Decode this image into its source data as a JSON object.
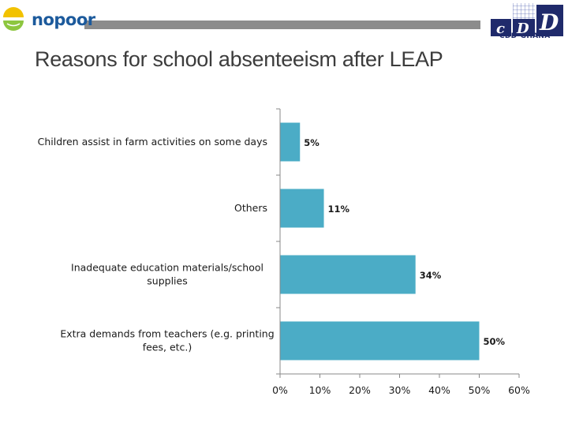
{
  "header": {
    "left_logo_text": "nopoor",
    "right_logo_text": "CDD-GHANA",
    "right_logo_letters": [
      "c",
      "D",
      "D"
    ]
  },
  "slide": {
    "title": "Reasons for school absenteeism after LEAP"
  },
  "chart_data": {
    "type": "bar",
    "orientation": "horizontal",
    "categories": [
      "Children assist in farm activities on some days",
      "Others",
      "Inadequate education materials/school supplies",
      "Extra demands from teachers (e.g. printing fees, etc.)"
    ],
    "category_lines": [
      [
        "Children assist in farm activities on some days"
      ],
      [
        "Others"
      ],
      [
        "Inadequate education materials/school",
        "supplies"
      ],
      [
        "Extra demands from teachers (e.g. printing",
        "fees, etc.)"
      ]
    ],
    "values": [
      5,
      11,
      34,
      50
    ],
    "data_labels": [
      "5%",
      "11%",
      "34%",
      "50%"
    ],
    "xlim": [
      0,
      60
    ],
    "xticks": [
      0,
      10,
      20,
      30,
      40,
      50,
      60
    ],
    "xtick_labels": [
      "0%",
      "10%",
      "20%",
      "30%",
      "40%",
      "50%",
      "60%"
    ],
    "grid": false,
    "legend": "none",
    "bar_color": "#4bacc6",
    "title": "",
    "xlabel": "",
    "ylabel": ""
  }
}
